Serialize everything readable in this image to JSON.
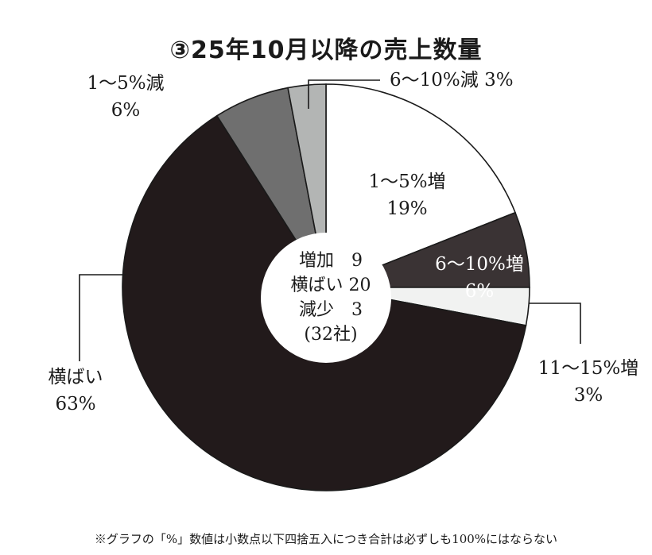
{
  "chart_data": {
    "type": "pie",
    "title": "③25年10月以降の売上数量",
    "slices": [
      {
        "label": "1～5%増",
        "value": 19,
        "value_label": "19%",
        "color": "#ffffff"
      },
      {
        "label": "6～10%増",
        "value": 6,
        "value_label": "6%",
        "color": "#3a3334"
      },
      {
        "label": "11～15%増",
        "value": 3,
        "value_label": "3%",
        "color": "#f1f2f1"
      },
      {
        "label": "横ばい",
        "value": 63,
        "value_label": "63%",
        "color": "#221a1b"
      },
      {
        "label": "1～5%減",
        "value": 6,
        "value_label": "6%",
        "color": "#6f6f6f"
      },
      {
        "label": "6～10%減",
        "value": 3,
        "value_label": "3%",
        "color": "#b3b5b4"
      }
    ],
    "center": {
      "lines": [
        "増加　9",
        "横ばい 20",
        "減少　3",
        "(32社)"
      ]
    }
  },
  "footnote": "※グラフの「%」数値は小数点以下四捨五入につき合計は必ずしも100%にはならない"
}
